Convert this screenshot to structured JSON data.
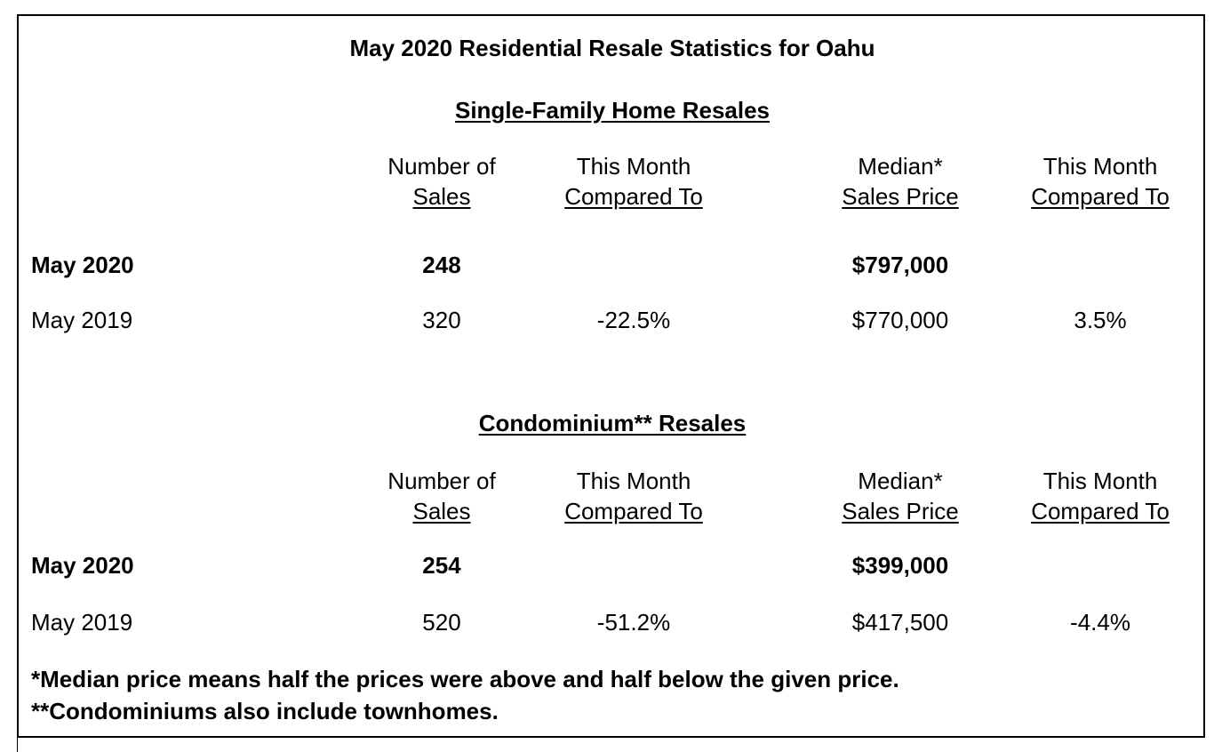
{
  "title": "May 2020 Residential Resale Statistics for Oahu",
  "sections": [
    {
      "heading": "Single-Family Home Resales",
      "columns": [
        {
          "line1": "Number of",
          "line2": "Sales"
        },
        {
          "line1": "This Month",
          "line2": "Compared To"
        },
        {
          "line1": "Median*",
          "line2": "Sales Price"
        },
        {
          "line1": "This Month",
          "line2": "Compared To"
        }
      ],
      "rows": [
        {
          "label": "May 2020",
          "sales": "248",
          "sales_change": "",
          "median": "$797,000",
          "median_change": ""
        },
        {
          "label": "May 2019",
          "sales": "320",
          "sales_change": "-22.5%",
          "median": "$770,000",
          "median_change": "3.5%"
        }
      ]
    },
    {
      "heading": "Condominium** Resales",
      "columns": [
        {
          "line1": "Number of",
          "line2": "Sales"
        },
        {
          "line1": "This Month",
          "line2": "Compared To"
        },
        {
          "line1": "Median*",
          "line2": "Sales Price"
        },
        {
          "line1": "This Month",
          "line2": "Compared To"
        }
      ],
      "rows": [
        {
          "label": "May 2020",
          "sales": "254",
          "sales_change": "",
          "median": "$399,000",
          "median_change": ""
        },
        {
          "label": "May 2019",
          "sales": "520",
          "sales_change": "-51.2%",
          "median": "$417,500",
          "median_change": "-4.4%"
        }
      ]
    }
  ],
  "footnotes": [
    "*Median price means half the prices were above and half below the given price.",
    "**Condominiums also include townhomes."
  ]
}
